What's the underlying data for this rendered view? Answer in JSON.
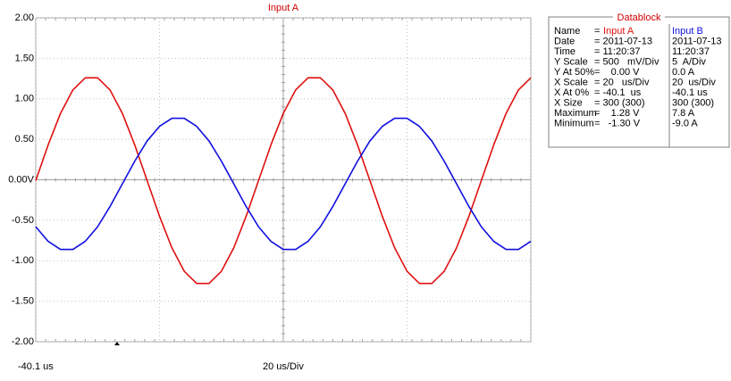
{
  "chart_data": {
    "type": "line",
    "title": "Input A",
    "x": [
      -40.1,
      -35.1,
      -30.1,
      -25.1,
      -20.1,
      -15.1,
      -10.1,
      -5.1,
      -0.1,
      4.9,
      9.9,
      14.9,
      19.9,
      24.9,
      29.9,
      34.9,
      39.9,
      44.9,
      49.9,
      54.9,
      59.9,
      64.9,
      69.9,
      74.9,
      79.9,
      84.9,
      89.9,
      94.9,
      99.9,
      104.9,
      109.9,
      114.9,
      119.9,
      124.9,
      129.9,
      134.9,
      139.9,
      144.9,
      149.9,
      154.9,
      159.9
    ],
    "series": [
      {
        "name": "Input A",
        "color": "#e01010",
        "values": [
          -0.01,
          0.43,
          0.82,
          1.11,
          1.26,
          1.26,
          1.11,
          0.82,
          0.43,
          -0.01,
          -0.45,
          -0.84,
          -1.13,
          -1.28,
          -1.28,
          -1.13,
          -0.84,
          -0.45,
          -0.01,
          0.43,
          0.82,
          1.11,
          1.26,
          1.26,
          1.11,
          0.82,
          0.43,
          -0.01,
          -0.45,
          -0.84,
          -1.13,
          -1.28,
          -1.28,
          -1.13,
          -0.84,
          -0.45,
          -0.01,
          0.43,
          0.82,
          1.11,
          1.26
        ]
      },
      {
        "name": "Input B",
        "color": "#1010e0",
        "values": [
          -0.58,
          -0.76,
          -0.86,
          -0.86,
          -0.76,
          -0.58,
          -0.33,
          -0.05,
          0.23,
          0.48,
          0.66,
          0.76,
          0.76,
          0.66,
          0.48,
          0.23,
          -0.05,
          -0.33,
          -0.58,
          -0.76,
          -0.86,
          -0.86,
          -0.76,
          -0.58,
          -0.33,
          -0.05,
          0.23,
          0.48,
          0.66,
          0.76,
          0.76,
          0.66,
          0.48,
          0.23,
          -0.05,
          -0.33,
          -0.58,
          -0.76,
          -0.86,
          -0.86,
          -0.76
        ]
      }
    ],
    "xlim": [
      -40.1,
      159.9
    ],
    "xticks": [
      -40.1,
      9.9,
      59.9,
      109.9,
      159.9
    ],
    "ylim": [
      -2,
      2
    ],
    "yticks": [
      {
        "value": 2,
        "label": "2.00"
      },
      {
        "value": 1.5,
        "label": "1.50"
      },
      {
        "value": 1,
        "label": "1.00"
      },
      {
        "value": 0.5,
        "label": "0.50"
      },
      {
        "value": 0,
        "label": "0.00V"
      },
      {
        "value": -0.5,
        "label": "-0.50"
      },
      {
        "value": -1,
        "label": "-1.00"
      },
      {
        "value": -1.5,
        "label": "-1.50"
      },
      {
        "value": -2,
        "label": "-2.00"
      }
    ],
    "grid": true,
    "x_start_label": "-40.1 us",
    "x_scale_label": "20 us/Div"
  },
  "datablock": {
    "title": "Datablock",
    "name_label": "Name",
    "separator": "=",
    "rows": [
      [
        "Date",
        "= 2011-07-13",
        "2011-07-13"
      ],
      [
        "Time",
        "= 11:20:37",
        "11:20:37"
      ],
      [
        "Y Scale",
        "= 500   mV/Div",
        "5  A/Div"
      ],
      [
        "Y At 50%",
        "=    0.00 V",
        "0.0 A"
      ],
      [
        "X Scale",
        "= 20   us/Div",
        "20  us/Div"
      ],
      [
        "X At 0%",
        "= -40.1  us",
        "-40.1 us"
      ],
      [
        "X Size",
        "= 300 (300)",
        "300 (300)"
      ],
      [
        "Maximum",
        "=    1.28 V",
        "7.8 A"
      ],
      [
        "Minimum",
        "=   -1.30 V",
        "-9.0 A"
      ]
    ]
  }
}
